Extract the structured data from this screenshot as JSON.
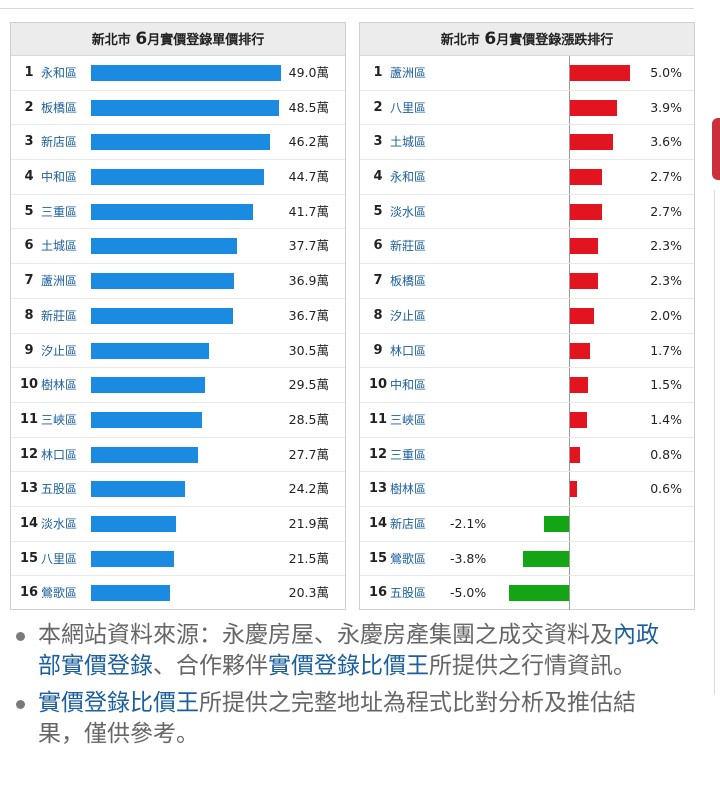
{
  "chart_data": [
    {
      "type": "bar",
      "title_prefix": "新北市",
      "title_month": "6",
      "title_suffix": "月實價登錄單價排行",
      "value_unit": "萬",
      "rows": [
        {
          "rank": "1",
          "district": "永和區",
          "value": 49.0,
          "label": "49.0萬"
        },
        {
          "rank": "2",
          "district": "板橋區",
          "value": 48.5,
          "label": "48.5萬"
        },
        {
          "rank": "3",
          "district": "新店區",
          "value": 46.2,
          "label": "46.2萬"
        },
        {
          "rank": "4",
          "district": "中和區",
          "value": 44.7,
          "label": "44.7萬"
        },
        {
          "rank": "5",
          "district": "三重區",
          "value": 41.7,
          "label": "41.7萬"
        },
        {
          "rank": "6",
          "district": "土城區",
          "value": 37.7,
          "label": "37.7萬"
        },
        {
          "rank": "7",
          "district": "蘆洲區",
          "value": 36.9,
          "label": "36.9萬"
        },
        {
          "rank": "8",
          "district": "新莊區",
          "value": 36.7,
          "label": "36.7萬"
        },
        {
          "rank": "9",
          "district": "汐止區",
          "value": 30.5,
          "label": "30.5萬"
        },
        {
          "rank": "10",
          "district": "樹林區",
          "value": 29.5,
          "label": "29.5萬"
        },
        {
          "rank": "11",
          "district": "三峽區",
          "value": 28.5,
          "label": "28.5萬"
        },
        {
          "rank": "12",
          "district": "林口區",
          "value": 27.7,
          "label": "27.7萬"
        },
        {
          "rank": "13",
          "district": "五股區",
          "value": 24.2,
          "label": "24.2萬"
        },
        {
          "rank": "14",
          "district": "淡水區",
          "value": 21.9,
          "label": "21.9萬"
        },
        {
          "rank": "15",
          "district": "八里區",
          "value": 21.5,
          "label": "21.5萬"
        },
        {
          "rank": "16",
          "district": "鶯歌區",
          "value": 20.3,
          "label": "20.3萬"
        }
      ],
      "colors": {
        "bar": "#1a8be0"
      }
    },
    {
      "type": "bar",
      "title_prefix": "新北市",
      "title_month": "6",
      "title_suffix": "月實價登錄漲跌排行",
      "rows": [
        {
          "rank": "1",
          "district": "蘆洲區",
          "value": 5.0,
          "label": "5.0%"
        },
        {
          "rank": "2",
          "district": "八里區",
          "value": 3.9,
          "label": "3.9%"
        },
        {
          "rank": "3",
          "district": "土城區",
          "value": 3.6,
          "label": "3.6%"
        },
        {
          "rank": "4",
          "district": "永和區",
          "value": 2.7,
          "label": "2.7%"
        },
        {
          "rank": "5",
          "district": "淡水區",
          "value": 2.7,
          "label": "2.7%"
        },
        {
          "rank": "6",
          "district": "新莊區",
          "value": 2.3,
          "label": "2.3%"
        },
        {
          "rank": "7",
          "district": "板橋區",
          "value": 2.3,
          "label": "2.3%"
        },
        {
          "rank": "8",
          "district": "汐止區",
          "value": 2.0,
          "label": "2.0%"
        },
        {
          "rank": "9",
          "district": "林口區",
          "value": 1.7,
          "label": "1.7%"
        },
        {
          "rank": "10",
          "district": "中和區",
          "value": 1.5,
          "label": "1.5%"
        },
        {
          "rank": "11",
          "district": "三峽區",
          "value": 1.4,
          "label": "1.4%"
        },
        {
          "rank": "12",
          "district": "三重區",
          "value": 0.8,
          "label": "0.8%"
        },
        {
          "rank": "13",
          "district": "樹林區",
          "value": 0.6,
          "label": "0.6%"
        },
        {
          "rank": "14",
          "district": "新店區",
          "value": -2.1,
          "label": "-2.1%"
        },
        {
          "rank": "15",
          "district": "鶯歌區",
          "value": -3.8,
          "label": "-3.8%"
        },
        {
          "rank": "16",
          "district": "五股區",
          "value": -5.0,
          "label": "-5.0%"
        }
      ],
      "colors": {
        "positive": "#e11420",
        "negative": "#14a514"
      }
    }
  ],
  "notes": {
    "note1_text_a": "本網站資料來源：永慶房屋、永慶房產集團之成交資料及",
    "note1_link_a": "內政部實價登錄",
    "note1_text_b": "、合作夥伴",
    "note1_link_b": "實價登錄比價王",
    "note1_text_c": "所提供之行情資訊。",
    "note2_link": "實價登錄比價王",
    "note2_text": "所提供之完整地址為程式比對分析及推估結果，僅供參考。"
  }
}
